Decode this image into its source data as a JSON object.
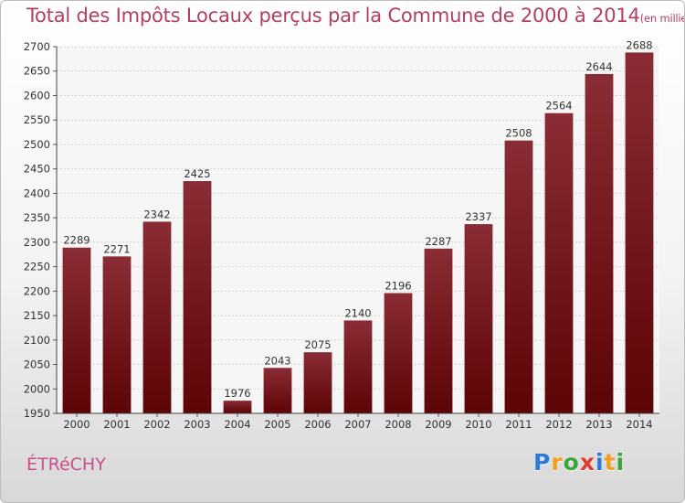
{
  "chart_data": {
    "type": "bar",
    "title": "Total des Impôts Locaux perçus par la Commune de 2000 à 2014",
    "unit_label": "(en milliers d'€)",
    "categories": [
      "2000",
      "2001",
      "2002",
      "2003",
      "2004",
      "2005",
      "2006",
      "2007",
      "2008",
      "2009",
      "2010",
      "2011",
      "2012",
      "2013",
      "2014"
    ],
    "values": [
      2289,
      2271,
      2342,
      2425,
      1976,
      2043,
      2075,
      2140,
      2196,
      2287,
      2337,
      2508,
      2564,
      2644,
      2688
    ],
    "ylim": [
      1950,
      2700
    ],
    "yticks": [
      1950,
      2000,
      2050,
      2100,
      2150,
      2200,
      2250,
      2300,
      2350,
      2400,
      2450,
      2500,
      2550,
      2600,
      2650,
      2700
    ],
    "xlabel": "",
    "ylabel": "",
    "grid": true,
    "bar_color_top": "#8a2c35",
    "bar_color_bottom": "#5c0406"
  },
  "commune": "ÉTRéCHY",
  "logo": {
    "letters": [
      "P",
      "r",
      "o",
      "x",
      "i",
      "t",
      "i"
    ],
    "colors": [
      "#2b7bd6",
      "#f0a020",
      "#3aa63a",
      "#e23a2a",
      "#2b7bd6",
      "#f0a020",
      "#3aa63a"
    ]
  }
}
